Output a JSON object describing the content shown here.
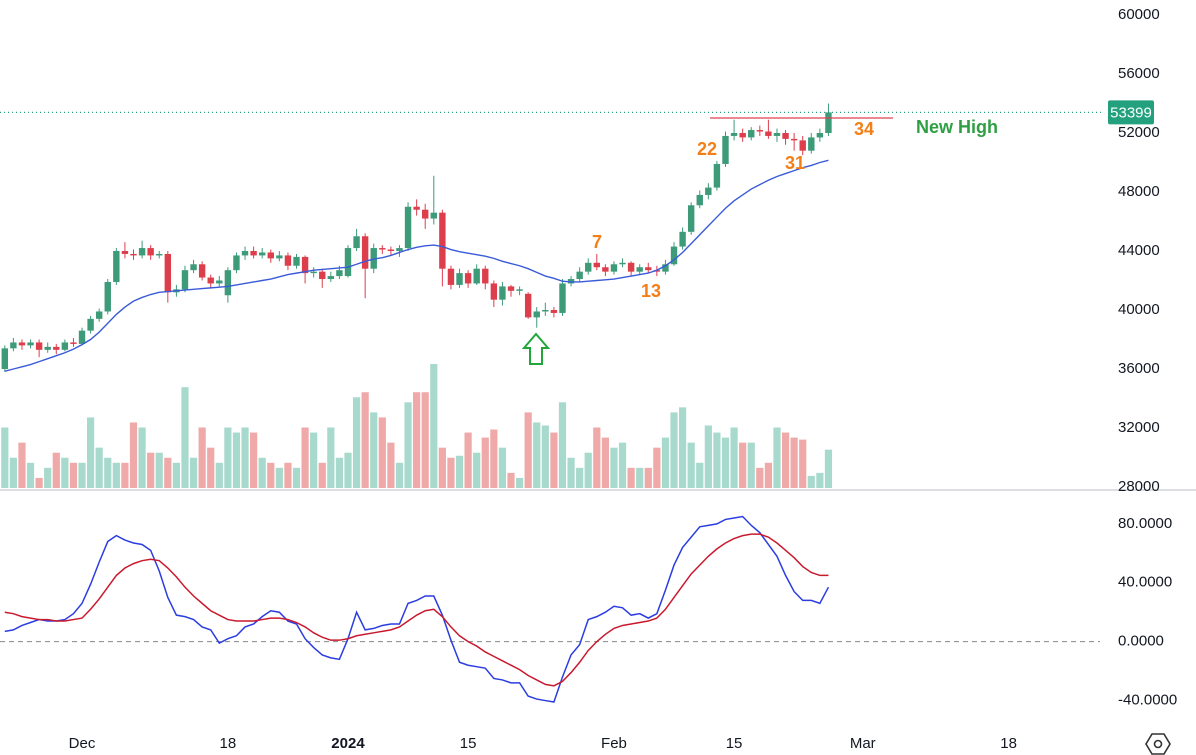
{
  "chart_data": [
    {
      "type": "candlestick",
      "x": [
        0,
        1,
        2,
        3,
        4,
        5,
        6,
        7,
        8,
        9,
        10,
        11,
        12,
        13,
        14,
        15,
        16,
        17,
        18,
        19,
        20,
        21,
        22,
        23,
        24,
        25,
        26,
        27,
        28,
        29,
        30,
        31,
        32,
        33,
        34,
        35,
        36,
        37,
        38,
        39,
        40,
        41,
        42,
        43,
        44,
        45,
        46,
        47,
        48,
        49,
        50,
        51,
        52,
        53,
        54,
        55,
        56,
        57,
        58,
        59,
        60,
        61,
        62,
        63,
        64,
        65,
        66,
        67,
        68,
        69,
        70,
        71,
        72,
        73,
        74,
        75,
        76,
        77,
        78,
        79,
        80,
        81,
        82,
        83,
        84,
        85,
        86,
        87,
        88,
        89,
        90,
        91,
        92,
        93,
        94,
        95,
        96
      ],
      "open": [
        36000,
        37400,
        37800,
        37600,
        37800,
        37300,
        37500,
        37300,
        37800,
        37700,
        38600,
        39400,
        39900,
        41900,
        44000,
        43800,
        43700,
        44200,
        43700,
        43800,
        41200,
        41400,
        42700,
        43100,
        42200,
        41800,
        41000,
        42700,
        43700,
        44000,
        43700,
        43900,
        43500,
        43700,
        43000,
        43600,
        42500,
        42600,
        42100,
        42300,
        42300,
        44200,
        45000,
        42800,
        44200,
        44100,
        44000,
        44200,
        47000,
        46800,
        46200,
        46600,
        42800,
        41700,
        42500,
        41800,
        42800,
        41800,
        40700,
        41600,
        41300,
        41100,
        39500,
        39900,
        40000,
        39800,
        41800,
        42100,
        42600,
        43200,
        42900,
        42600,
        43100,
        43200,
        42600,
        42900,
        42700,
        42600,
        43100,
        44300,
        45300,
        47100,
        47800,
        48300,
        49900,
        51800,
        52000,
        51700,
        52200,
        52100,
        51800,
        52000,
        51600,
        51500,
        50800,
        51700,
        52000
      ],
      "high": [
        37600,
        38100,
        38000,
        38000,
        38000,
        37800,
        37700,
        38000,
        38100,
        38800,
        39600,
        40100,
        42100,
        44200,
        44600,
        44100,
        44700,
        44400,
        44000,
        44000,
        41700,
        43000,
        43400,
        43300,
        42400,
        42300,
        42900,
        43900,
        44300,
        44300,
        44200,
        44100,
        44000,
        43900,
        43800,
        43700,
        42900,
        42800,
        42600,
        43000,
        44400,
        45500,
        45200,
        44500,
        44400,
        44300,
        44400,
        47300,
        47500,
        47200,
        49100,
        46800,
        43000,
        42800,
        42700,
        43100,
        43000,
        42000,
        41900,
        41700,
        41600,
        41200,
        40200,
        40500,
        40200,
        42100,
        42300,
        42900,
        43500,
        43800,
        43100,
        43300,
        43500,
        43300,
        43100,
        43200,
        43000,
        43400,
        44600,
        45600,
        47300,
        48100,
        48600,
        50100,
        52100,
        52900,
        52300,
        52400,
        52500,
        52900,
        52300,
        52200,
        52000,
        51800,
        52000,
        52300,
        54000
      ],
      "low": [
        35800,
        37200,
        37300,
        37400,
        36800,
        37100,
        37000,
        37200,
        37500,
        37600,
        38400,
        39200,
        39700,
        41700,
        43500,
        43400,
        43500,
        43400,
        43500,
        40500,
        40900,
        41200,
        42500,
        42000,
        41500,
        41600,
        40500,
        42500,
        43400,
        43500,
        43500,
        43200,
        43300,
        42700,
        42800,
        41800,
        42200,
        41500,
        41900,
        42100,
        42200,
        44000,
        40800,
        42500,
        43800,
        43700,
        43600,
        44000,
        46400,
        45500,
        45800,
        41600,
        41400,
        41500,
        41500,
        41700,
        41400,
        40200,
        40300,
        40900,
        41000,
        39400,
        38800,
        39600,
        39500,
        39600,
        41600,
        41900,
        42400,
        42700,
        42300,
        42400,
        42900,
        42300,
        42400,
        42500,
        42300,
        42400,
        43000,
        44100,
        45100,
        46900,
        47500,
        48100,
        49700,
        51500,
        51400,
        51500,
        51800,
        51600,
        51400,
        51200,
        50800,
        50500,
        50600,
        51400,
        51800
      ],
      "close": [
        37400,
        37800,
        37600,
        37800,
        37300,
        37500,
        37300,
        37800,
        37700,
        38600,
        39400,
        39900,
        41900,
        44000,
        43800,
        43700,
        44200,
        43700,
        43800,
        41200,
        41400,
        42700,
        43100,
        42200,
        41800,
        42000,
        42700,
        43700,
        44000,
        43700,
        43900,
        43500,
        43700,
        43000,
        43600,
        42500,
        42600,
        42100,
        42300,
        42700,
        44200,
        45000,
        42800,
        44200,
        44100,
        44000,
        44200,
        47000,
        46800,
        46200,
        46600,
        42800,
        41700,
        42500,
        41800,
        42800,
        41800,
        40700,
        41600,
        41300,
        41400,
        39500,
        39900,
        40000,
        39800,
        41800,
        42100,
        42600,
        43200,
        42900,
        42600,
        43100,
        43200,
        42600,
        42900,
        42700,
        42600,
        43100,
        44300,
        45300,
        47100,
        47800,
        48300,
        49900,
        51800,
        52000,
        51700,
        52200,
        52100,
        51800,
        52000,
        51600,
        51500,
        50800,
        51700,
        52000,
        53399
      ],
      "volume": [
        60,
        30,
        45,
        25,
        10,
        20,
        35,
        30,
        25,
        25,
        70,
        40,
        30,
        25,
        25,
        65,
        60,
        35,
        35,
        30,
        25,
        100,
        30,
        60,
        40,
        25,
        60,
        55,
        60,
        55,
        30,
        25,
        20,
        25,
        20,
        60,
        55,
        25,
        60,
        30,
        35,
        90,
        95,
        75,
        70,
        45,
        25,
        85,
        95,
        95,
        123,
        40,
        30,
        32,
        55,
        35,
        50,
        58,
        40,
        15,
        10,
        75,
        65,
        62,
        55,
        85,
        30,
        20,
        35,
        60,
        50,
        40,
        45,
        20,
        20,
        20,
        40,
        50,
        75,
        80,
        45,
        25,
        62,
        55,
        50,
        60,
        45,
        45,
        20,
        25,
        60,
        55,
        50,
        48,
        12,
        15,
        38
      ],
      "ma": {
        "color": "#3a5bd9",
        "values": [
          35850,
          36000,
          36150,
          36300,
          36500,
          36700,
          36900,
          37100,
          37350,
          37650,
          38000,
          38500,
          39100,
          39700,
          40200,
          40600,
          40850,
          41050,
          41200,
          41250,
          41300,
          41350,
          41400,
          41450,
          41500,
          41550,
          41600,
          41700,
          41800,
          41900,
          42000,
          42100,
          42250,
          42400,
          42500,
          42600,
          42700,
          42750,
          42800,
          42850,
          42900,
          43100,
          43300,
          43450,
          43550,
          43700,
          43900,
          44100,
          44250,
          44350,
          44400,
          44300,
          44100,
          43950,
          43850,
          43750,
          43650,
          43500,
          43300,
          43150,
          43000,
          42800,
          42550,
          42300,
          42150,
          41950,
          41900,
          41900,
          41950,
          42000,
          42050,
          42100,
          42200,
          42300,
          42400,
          42500,
          42700,
          43000,
          43400,
          43900,
          44500,
          45100,
          45700,
          46300,
          46900,
          47400,
          47800,
          48200,
          48500,
          48800,
          49050,
          49250,
          49450,
          49650,
          49800,
          50000,
          50150
        ]
      },
      "up_color": "#3d9b7a",
      "down_color": "#dd3e4c",
      "volume_up_color": "#a8d9cd",
      "volume_down_color": "#efa9a9",
      "last_price_color": "#23a17f",
      "xlim": [
        -0.56,
        127.65
      ],
      "ylim": [
        27932,
        61017
      ],
      "yticks": [
        60000,
        56000,
        52000,
        48000,
        44000,
        40000,
        36000,
        32000,
        28000
      ],
      "annotations": [
        "22",
        "31",
        "34",
        "7",
        "13",
        "New High"
      ]
    },
    {
      "type": "line",
      "x": [
        0,
        1,
        2,
        3,
        4,
        5,
        6,
        7,
        8,
        9,
        10,
        11,
        12,
        13,
        14,
        15,
        16,
        17,
        18,
        19,
        20,
        21,
        22,
        23,
        24,
        25,
        26,
        27,
        28,
        29,
        30,
        31,
        32,
        33,
        34,
        35,
        36,
        37,
        38,
        39,
        40,
        41,
        42,
        43,
        44,
        45,
        46,
        47,
        48,
        49,
        50,
        51,
        52,
        53,
        54,
        55,
        56,
        57,
        58,
        59,
        60,
        61,
        62,
        63,
        64,
        65,
        66,
        67,
        68,
        69,
        70,
        71,
        72,
        73,
        74,
        75,
        76,
        77,
        78,
        79,
        80,
        81,
        82,
        83,
        84,
        85,
        86,
        87,
        88,
        89,
        90,
        91,
        92,
        93,
        94,
        95,
        96
      ],
      "series": [
        {
          "color": "#2b3de0",
          "values": [
            7,
            8,
            11,
            13,
            15,
            14,
            14,
            15,
            19,
            26,
            39,
            54,
            68,
            72,
            69,
            67,
            66,
            62,
            48,
            30,
            18,
            17,
            15,
            10,
            8,
            -1,
            2,
            4,
            10,
            12,
            17,
            21,
            20,
            14,
            12,
            2,
            -4,
            -9,
            -11,
            -12,
            2,
            20,
            8,
            9,
            11,
            12,
            12,
            26,
            28,
            31,
            31,
            18,
            1,
            -14,
            -16,
            -17,
            -18,
            -25,
            -26,
            -28,
            -28,
            -37,
            -39,
            -40,
            -41,
            -24,
            -9,
            -2,
            15,
            17,
            20,
            24,
            23,
            18,
            19,
            16,
            19,
            35,
            52,
            64,
            71,
            78,
            79,
            80,
            83,
            84,
            85,
            79,
            74,
            66,
            58,
            45,
            34,
            28,
            28,
            26,
            37
          ]
        },
        {
          "color": "#c8192e",
          "values": [
            20,
            19,
            17,
            16,
            15,
            15,
            14,
            14,
            15,
            16,
            22,
            29,
            37,
            45,
            50,
            53,
            55,
            56,
            55,
            50,
            44,
            37,
            31,
            26,
            21,
            18,
            15,
            14,
            14,
            14,
            15,
            16,
            16,
            15,
            13,
            10,
            6,
            3,
            1,
            1,
            2,
            4,
            5,
            6,
            7,
            8,
            10,
            14,
            18,
            21,
            22,
            17,
            10,
            4,
            0,
            -3,
            -7,
            -10,
            -13,
            -16,
            -19,
            -23,
            -26,
            -29,
            -30,
            -27,
            -21,
            -14,
            -6,
            0,
            5,
            9,
            11,
            12,
            13,
            14,
            16,
            22,
            30,
            38,
            46,
            52,
            58,
            63,
            67,
            70,
            72,
            73,
            73,
            71,
            67,
            62,
            57,
            51,
            47,
            45,
            45
          ]
        }
      ],
      "xlim": [
        -0.56,
        127.65
      ],
      "ylim": [
        -60,
        103
      ],
      "yticks": [
        {
          "value": 80,
          "label": "80.0000"
        },
        {
          "value": 40,
          "label": "40.0000"
        },
        {
          "value": 0,
          "label": "0.0000"
        },
        {
          "value": -40,
          "label": "-40.0000"
        }
      ],
      "zero_line": true,
      "xticks": [
        {
          "value": 9,
          "label": "Dec"
        },
        {
          "value": 26,
          "label": "18"
        },
        {
          "value": 40,
          "label": "2024"
        },
        {
          "value": 54,
          "label": "15"
        },
        {
          "value": 71,
          "label": "Feb"
        },
        {
          "value": 85,
          "label": "15"
        },
        {
          "value": 100,
          "label": "Mar"
        },
        {
          "value": 117,
          "label": "18"
        }
      ]
    }
  ]
}
